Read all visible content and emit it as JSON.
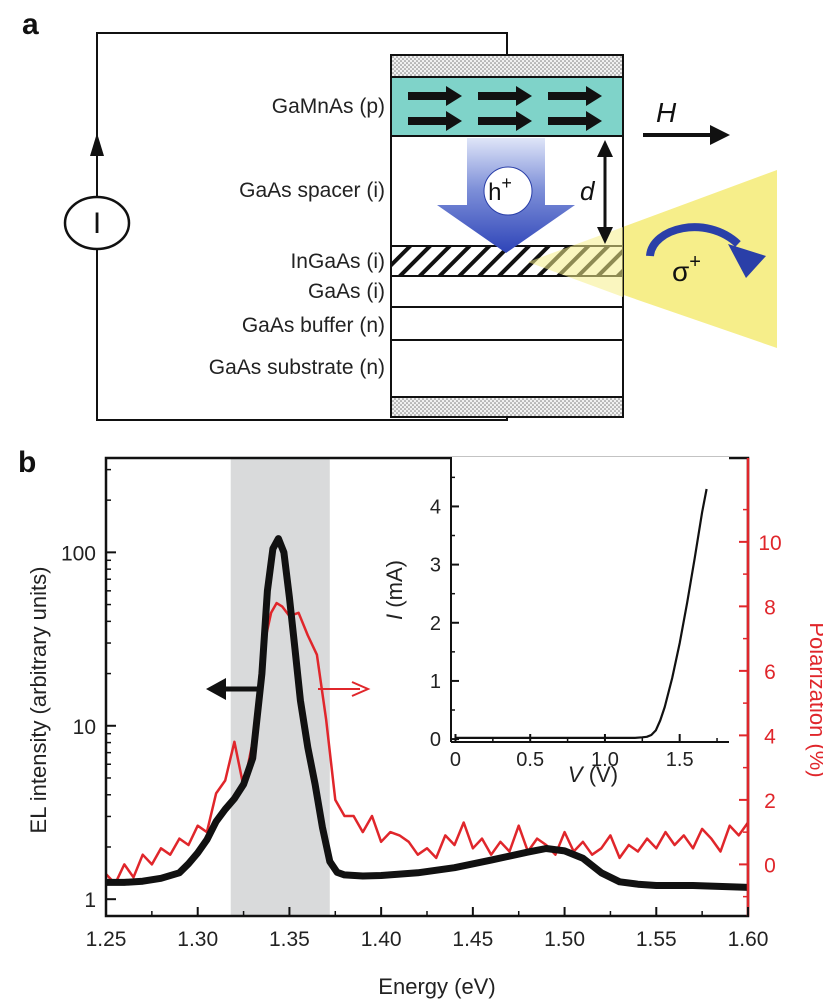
{
  "panel_a": {
    "letter": "a",
    "layers": [
      {
        "label": "GaMnAs (p)"
      },
      {
        "label": "GaAs spacer (i)"
      },
      {
        "label": "InGaAs (i)"
      },
      {
        "label": "GaAs (i)"
      },
      {
        "label": "GaAs buffer (n)"
      },
      {
        "label": "GaAs substrate (n)"
      }
    ],
    "current_source_label": "I",
    "field_label": "H",
    "hole_label": "h",
    "hole_sup": "+",
    "distance_label": "d",
    "emission_label": "σ",
    "emission_sup": "+",
    "colors": {
      "gamnas": "#7fd3c9",
      "arrow_blue": "#2a3fa8",
      "emission_yellow": "#f6ee8a",
      "contact_gray": "#cfcfcf"
    }
  },
  "panel_b": {
    "letter": "b",
    "colors": {
      "el_series": "#111111",
      "pol_series": "#e0262b",
      "shade": "#d9dadb"
    }
  },
  "chart_data": [
    {
      "type": "line",
      "xlabel": "Energy (eV)",
      "ylabel": "EL intensity (arbitrary units)",
      "y2label": "Polarization (%)",
      "xlim": [
        1.25,
        1.6
      ],
      "y_scale": "log",
      "ylim": [
        0.8,
        350
      ],
      "y2lim": [
        -1.6,
        12.6
      ],
      "x_ticks": [
        "1.25",
        "1.30",
        "1.35",
        "1.40",
        "1.45",
        "1.50",
        "1.55",
        "1.60"
      ],
      "y_ticks": [
        "1",
        "10",
        "100"
      ],
      "y2_ticks": [
        "0",
        "2",
        "4",
        "6",
        "8",
        "10"
      ],
      "shaded_region_x": [
        1.318,
        1.372
      ],
      "series": [
        {
          "axis": "left",
          "x": [
            1.25,
            1.26,
            1.27,
            1.28,
            1.29,
            1.295,
            1.3,
            1.305,
            1.31,
            1.315,
            1.32,
            1.325,
            1.33,
            1.335,
            1.338,
            1.341,
            1.344,
            1.347,
            1.35,
            1.353,
            1.356,
            1.36,
            1.364,
            1.368,
            1.372,
            1.376,
            1.38,
            1.39,
            1.4,
            1.42,
            1.44,
            1.46,
            1.48,
            1.49,
            1.5,
            1.51,
            1.52,
            1.53,
            1.54,
            1.55,
            1.56,
            1.57,
            1.58,
            1.59,
            1.6
          ],
          "y": [
            1.25,
            1.25,
            1.27,
            1.32,
            1.42,
            1.6,
            1.85,
            2.2,
            2.8,
            3.3,
            3.8,
            4.6,
            6.5,
            20,
            60,
            105,
            120,
            100,
            55,
            28,
            14,
            7.5,
            4.6,
            2.6,
            1.65,
            1.43,
            1.38,
            1.36,
            1.37,
            1.42,
            1.52,
            1.68,
            1.87,
            1.96,
            1.9,
            1.72,
            1.42,
            1.26,
            1.22,
            1.2,
            1.2,
            1.2,
            1.19,
            1.18,
            1.17
          ]
        },
        {
          "axis": "right",
          "x": [
            1.25,
            1.255,
            1.26,
            1.265,
            1.27,
            1.275,
            1.28,
            1.285,
            1.29,
            1.295,
            1.3,
            1.305,
            1.31,
            1.315,
            1.32,
            1.325,
            1.33,
            1.335,
            1.34,
            1.343,
            1.346,
            1.35,
            1.355,
            1.36,
            1.365,
            1.37,
            1.375,
            1.38,
            1.385,
            1.39,
            1.395,
            1.4,
            1.405,
            1.41,
            1.415,
            1.42,
            1.425,
            1.43,
            1.435,
            1.44,
            1.445,
            1.45,
            1.455,
            1.46,
            1.465,
            1.47,
            1.475,
            1.48,
            1.485,
            1.49,
            1.495,
            1.5,
            1.505,
            1.51,
            1.515,
            1.52,
            1.525,
            1.53,
            1.535,
            1.54,
            1.545,
            1.55,
            1.555,
            1.56,
            1.565,
            1.57,
            1.575,
            1.58,
            1.585,
            1.59,
            1.595,
            1.6
          ],
          "y": [
            -0.3,
            -0.6,
            0.0,
            -0.4,
            0.3,
            0.0,
            0.5,
            0.3,
            0.8,
            0.6,
            1.2,
            1.0,
            2.2,
            2.6,
            3.8,
            2.4,
            3.8,
            6.5,
            7.8,
            8.1,
            8.0,
            7.7,
            7.8,
            7.1,
            6.5,
            4.5,
            2.0,
            1.5,
            1.5,
            1.0,
            1.5,
            0.7,
            1.0,
            0.9,
            0.7,
            0.3,
            0.5,
            0.2,
            0.9,
            0.6,
            1.3,
            0.5,
            0.8,
            0.3,
            0.7,
            0.4,
            1.2,
            0.4,
            0.8,
            0.6,
            0.3,
            1.0,
            0.4,
            0.7,
            0.3,
            0.5,
            0.9,
            0.2,
            0.6,
            0.4,
            0.8,
            0.5,
            1.0,
            0.6,
            0.9,
            0.5,
            1.1,
            0.8,
            0.4,
            1.2,
            0.9,
            1.3
          ]
        }
      ]
    },
    {
      "type": "line",
      "xlabel": "V (V)",
      "ylabel": "I (mA)",
      "xlim": [
        -0.03,
        1.83
      ],
      "ylim": [
        -0.05,
        4.85
      ],
      "x_ticks": [
        "0",
        "0.5",
        "1.0",
        "1.5"
      ],
      "y_ticks": [
        "0",
        "1",
        "2",
        "3",
        "4"
      ],
      "series": [
        {
          "x": [
            0.0,
            0.5,
            1.0,
            1.2,
            1.25,
            1.28,
            1.31,
            1.34,
            1.37,
            1.4,
            1.45,
            1.5,
            1.55,
            1.6,
            1.65,
            1.68
          ],
          "y": [
            0.02,
            0.02,
            0.02,
            0.02,
            0.03,
            0.04,
            0.07,
            0.15,
            0.32,
            0.55,
            1.05,
            1.65,
            2.35,
            3.1,
            3.9,
            4.3
          ]
        }
      ]
    }
  ]
}
